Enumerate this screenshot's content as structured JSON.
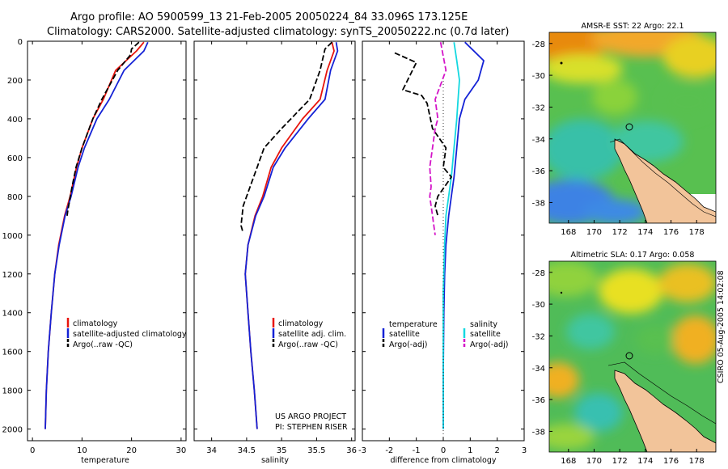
{
  "header": {
    "line1": "Argo profile: AO 5900599_13 21-Feb-2005 20050224_84 33.096S 173.125E",
    "line2": "Climatology: CARS2000. Satellite-adjusted climatology: synTS_20050222.nc (0.7d later)"
  },
  "credit": "CSIRO 05-Aug-2005 14:02:08",
  "project": {
    "line1": "US ARGO PROJECT",
    "line2": "PI: STEPHEN RISER"
  },
  "colors": {
    "climatology": "#e8140c",
    "satellite": "#1422d6",
    "argo": "#000000",
    "salinity_sat": "#14d8e0",
    "salinity_argo": "#d414c8",
    "land": "#f2c49a"
  },
  "chart_data": [
    {
      "type": "line",
      "xlabel": "temperature",
      "xlim": [
        -1,
        31
      ],
      "ylim": [
        0,
        2060
      ],
      "y_inverted": true,
      "xticks": [
        "0",
        "10",
        "20",
        "30"
      ],
      "yticks": [
        "0",
        "200",
        "400",
        "600",
        "800",
        "1000",
        "1200",
        "1400",
        "1600",
        "1800",
        "2000"
      ],
      "legend": [
        "climatology",
        "satellite-adjusted climatology",
        "Argo(..raw -QC)"
      ],
      "series": [
        {
          "name": "climatology",
          "style": "solid",
          "color_key": "climatology",
          "x": [
            22.5,
            21.0,
            16.8,
            14.3,
            12.2,
            10.0,
            8.9,
            7.6,
            6.5,
            5.3,
            4.5,
            3.8,
            3.2,
            2.8,
            2.6
          ],
          "y": [
            5,
            50,
            150,
            300,
            400,
            550,
            650,
            800,
            900,
            1050,
            1200,
            1400,
            1600,
            1800,
            2000
          ]
        },
        {
          "name": "satellite-adjusted climatology",
          "style": "solid",
          "color_key": "satellite",
          "x": [
            23.3,
            22.5,
            18.5,
            15.5,
            13.0,
            10.5,
            9.2,
            7.8,
            6.6,
            5.4,
            4.5,
            3.8,
            3.2,
            2.8,
            2.6
          ],
          "y": [
            5,
            50,
            150,
            300,
            400,
            550,
            650,
            800,
            900,
            1050,
            1200,
            1400,
            1600,
            1800,
            2000
          ]
        },
        {
          "name": "Argo(..raw -QC)",
          "style": "dashed",
          "color_key": "argo",
          "x": [
            21.5,
            20.0,
            19.8,
            17.2,
            14.0,
            12.2,
            10.0,
            8.8,
            8.0,
            7.5,
            7.1,
            7.0
          ],
          "y": [
            5,
            40,
            70,
            150,
            300,
            400,
            550,
            650,
            750,
            820,
            880,
            900
          ]
        }
      ]
    },
    {
      "type": "line",
      "xlabel": "salinity",
      "xlim": [
        33.75,
        36.05
      ],
      "ylim": [
        0,
        2060
      ],
      "y_inverted": true,
      "xticks": [
        "34",
        "34.5",
        "35",
        "35.5",
        "36"
      ],
      "legend": [
        "climatology",
        "satellite adj. clim.",
        "Argo(..raw -QC)"
      ],
      "series": [
        {
          "name": "climatology",
          "style": "solid",
          "color_key": "climatology",
          "x": [
            35.72,
            35.75,
            35.65,
            35.55,
            35.3,
            35.0,
            34.85,
            34.73,
            34.62,
            34.52,
            34.48,
            34.52,
            34.56,
            34.61,
            34.65
          ],
          "y": [
            5,
            50,
            150,
            300,
            400,
            550,
            650,
            800,
            900,
            1050,
            1200,
            1400,
            1600,
            1800,
            2000
          ]
        },
        {
          "name": "satellite adj. clim.",
          "style": "solid",
          "color_key": "satellite",
          "x": [
            35.78,
            35.8,
            35.7,
            35.62,
            35.38,
            35.05,
            34.88,
            34.75,
            34.63,
            34.52,
            34.48,
            34.52,
            34.56,
            34.61,
            34.65
          ],
          "y": [
            5,
            50,
            150,
            300,
            400,
            550,
            650,
            800,
            900,
            1050,
            1200,
            1400,
            1600,
            1800,
            2000
          ]
        },
        {
          "name": "Argo(..raw -QC)",
          "style": "dashed",
          "color_key": "argo",
          "x": [
            35.72,
            35.62,
            35.55,
            35.4,
            35.0,
            34.75,
            34.65,
            34.55,
            34.45,
            34.42,
            34.45
          ],
          "y": [
            5,
            40,
            150,
            300,
            450,
            550,
            650,
            750,
            850,
            950,
            990
          ]
        }
      ]
    },
    {
      "type": "line",
      "xlabel": "difference from climatology",
      "xlim": [
        -3,
        3
      ],
      "ylim": [
        0,
        2060
      ],
      "y_inverted": true,
      "xticks": [
        "-3",
        "-2",
        "-1",
        "0",
        "1",
        "2",
        "3"
      ],
      "legend": [
        "temperature",
        "satellite",
        "Argo(-adj)",
        "salinity",
        "satellite",
        "Argo(-adj)"
      ],
      "series": [
        {
          "name": "temperature satellite",
          "style": "solid",
          "color_key": "satellite",
          "x": [
            0.8,
            1.5,
            1.3,
            0.8,
            0.6,
            0.5,
            0.4,
            0.3,
            0.2,
            0.1,
            0.05,
            0.02,
            0.0,
            0.0
          ],
          "y": [
            5,
            100,
            200,
            300,
            400,
            550,
            700,
            800,
            900,
            1050,
            1200,
            1400,
            1700,
            2000
          ]
        },
        {
          "name": "salinity satellite",
          "style": "solid",
          "color_key": "salinity_sat",
          "x": [
            0.4,
            0.5,
            0.6,
            0.55,
            0.5,
            0.4,
            0.3,
            0.2,
            0.1,
            0.05,
            0.0,
            0.0
          ],
          "y": [
            5,
            100,
            200,
            300,
            400,
            550,
            700,
            800,
            900,
            1050,
            1300,
            2000
          ]
        },
        {
          "name": "temperature Argo(-adj)",
          "style": "dashed",
          "color_key": "argo",
          "x": [
            -1.8,
            -1.0,
            -1.5,
            -0.8,
            -0.6,
            -0.4,
            0.1,
            0.0,
            0.3,
            -0.2,
            -0.3,
            -0.2
          ],
          "y": [
            60,
            110,
            250,
            280,
            320,
            450,
            550,
            650,
            700,
            800,
            850,
            900
          ]
        },
        {
          "name": "salinity Argo(-adj)",
          "style": "dashed",
          "color_key": "salinity_argo",
          "x": [
            -0.1,
            0.1,
            -0.3,
            -0.2,
            -0.3,
            -0.4,
            -0.5,
            -0.45,
            -0.5,
            -0.4,
            -0.35,
            -0.3
          ],
          "y": [
            5,
            150,
            300,
            400,
            450,
            550,
            650,
            750,
            800,
            900,
            950,
            1000
          ]
        }
      ]
    }
  ],
  "maps": [
    {
      "title": "AMSR-E SST: 22 Argo: 22.1",
      "xticks": [
        "168",
        "170",
        "172",
        "174",
        "176",
        "178"
      ],
      "yticks": [
        "-28",
        "-30",
        "-32",
        "-34",
        "-36",
        "-38"
      ],
      "lonlim": [
        166.5,
        179.5
      ],
      "latlim": [
        -39.3,
        -27.3
      ]
    },
    {
      "title": "Altimetric SLA: 0.17 Argo: 0.058",
      "xticks": [
        "168",
        "170",
        "172",
        "174",
        "176",
        "178"
      ],
      "yticks": [
        "-28",
        "-30",
        "-32",
        "-34",
        "-36",
        "-38"
      ],
      "lonlim": [
        166.5,
        179.5
      ],
      "latlim": [
        -39.3,
        -27.3
      ]
    }
  ],
  "float_position": {
    "lat": -33.096,
    "lon": 173.125
  }
}
